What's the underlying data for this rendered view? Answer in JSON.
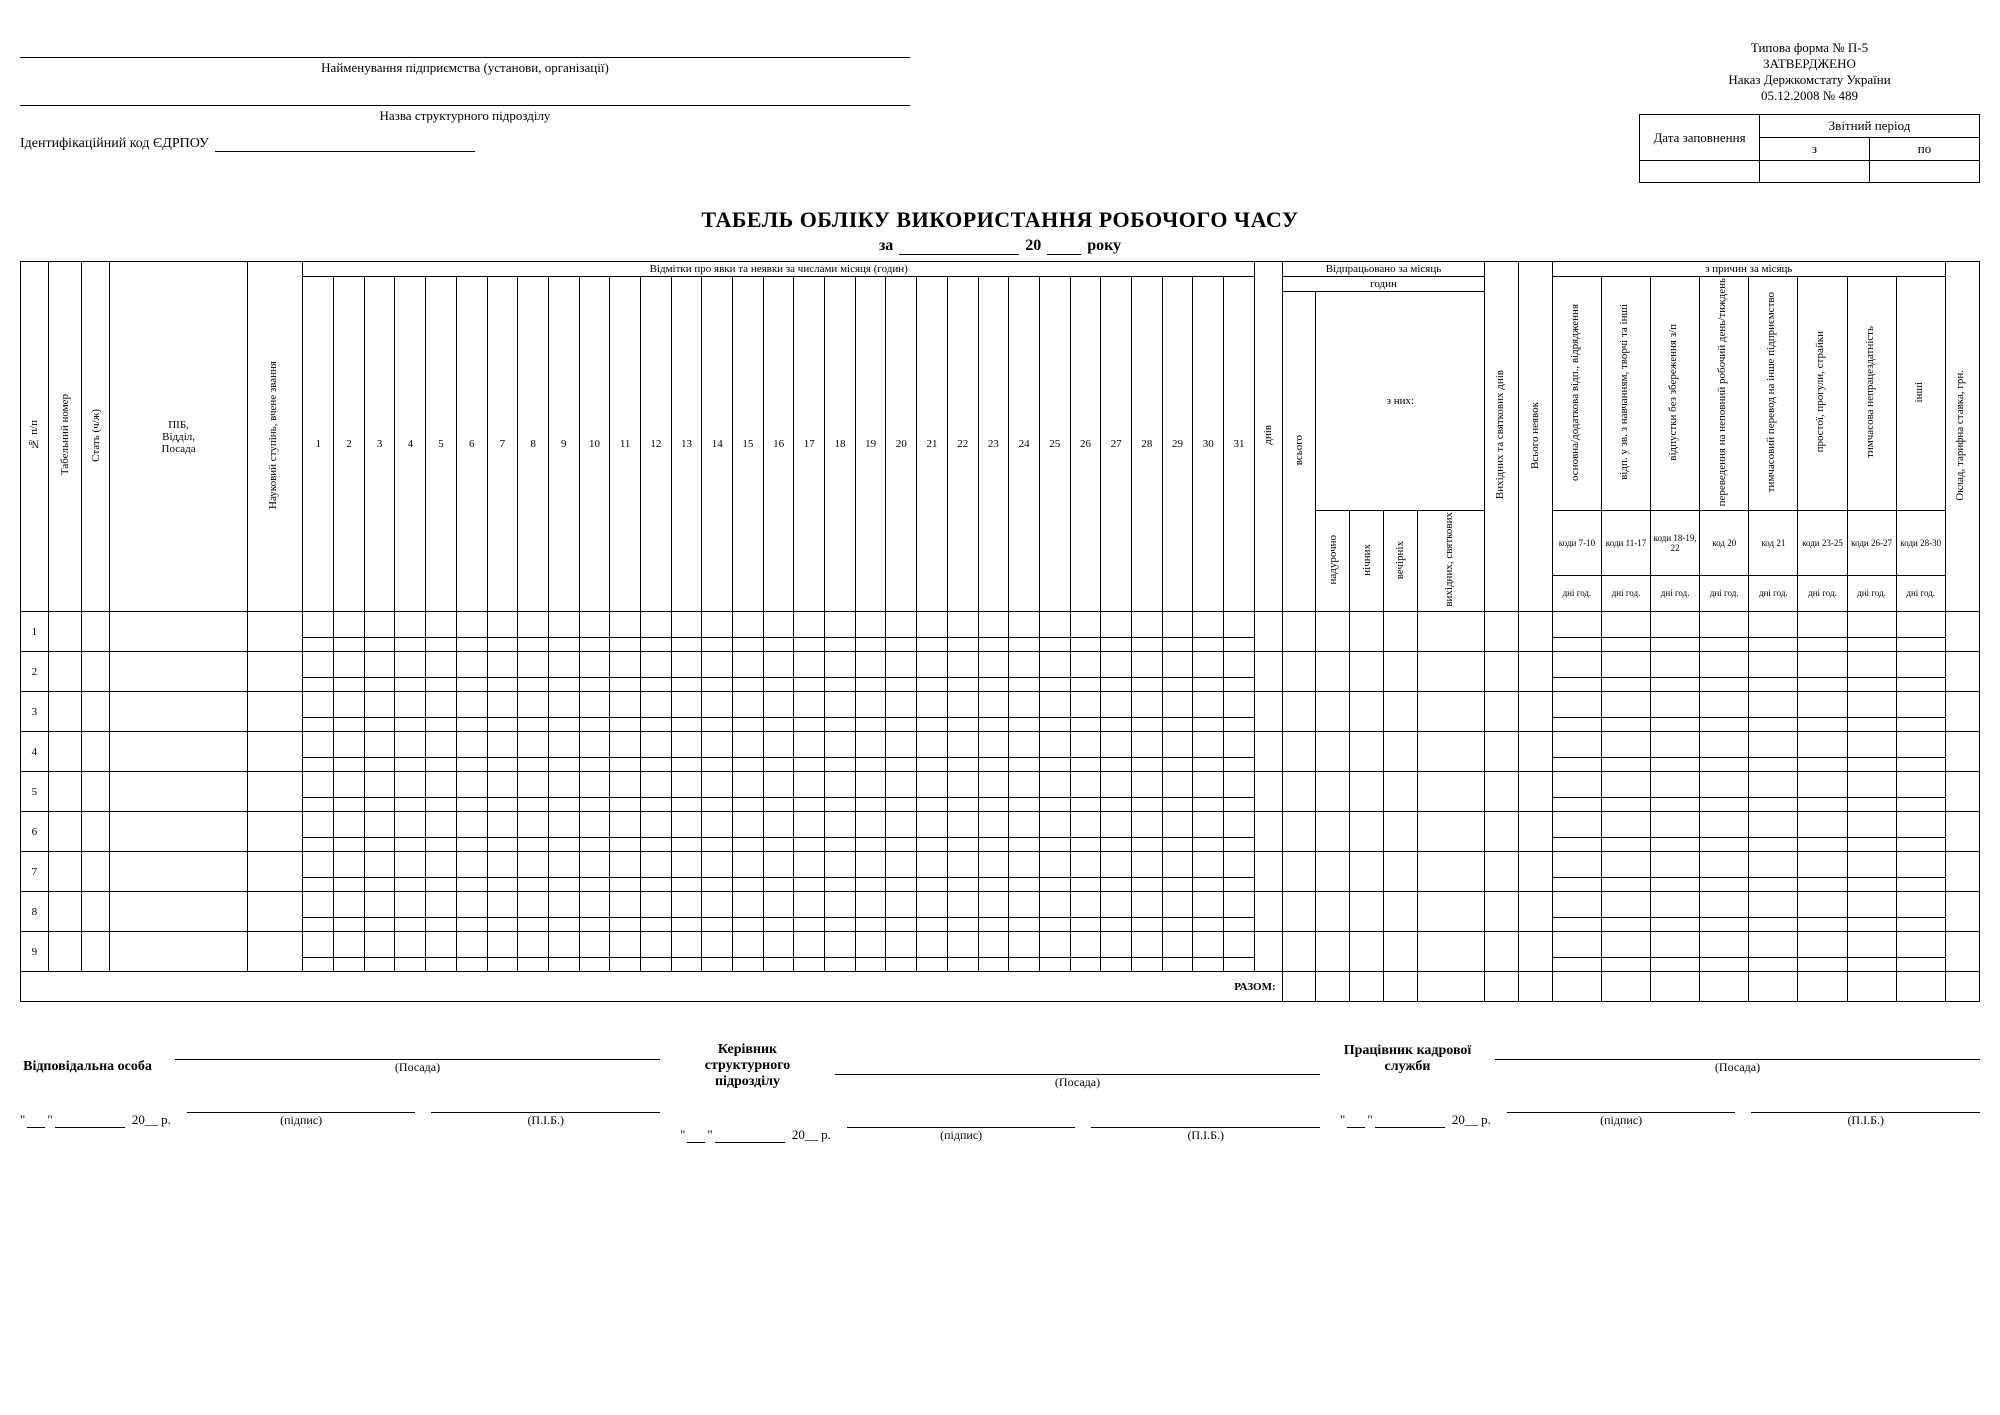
{
  "header": {
    "org_caption": "Найменування підприємства (установи, організації)",
    "unit_caption": "Назва структурного підрозділу",
    "id_label": "Ідентифікаційний код ЄДРПОУ",
    "form_line1": "Типова форма № П-5",
    "form_line2": "ЗАТВЕРДЖЕНО",
    "form_line3": "Наказ Держкомстату України",
    "form_line4": "05.12.2008 № 489",
    "period_table": {
      "date_filled": "Дата заповнення",
      "period": "Звітний період",
      "from": "з",
      "to": "по"
    }
  },
  "title": "ТАБЕЛЬ ОБЛІКУ ВИКОРИСТАННЯ РОБОЧОГО ЧАСУ",
  "subtitle": {
    "za": "за",
    "twenty": "20",
    "year": "року"
  },
  "columns": {
    "no": "№ п/п",
    "tab_no": "Табельний номер",
    "sex": "Стать (ч/ж)",
    "name": "ПІБ,\nВідділ,\nПосада",
    "degree": "Науковий ступінь,\nвчене звання",
    "marks_title": "Відмітки про явки та неявки за числами місяця (годин)",
    "days": [
      "1",
      "2",
      "3",
      "4",
      "5",
      "6",
      "7",
      "8",
      "9",
      "10",
      "11",
      "12",
      "13",
      "14",
      "15",
      "16",
      "17",
      "18",
      "19",
      "20",
      "21",
      "22",
      "23",
      "24",
      "25",
      "26",
      "27",
      "28",
      "29",
      "30",
      "31"
    ],
    "days_col": "днів",
    "worked_month": "Відпрацьовано за місяць",
    "hours": "годин",
    "of_them": "з них:",
    "vsogo": "всього",
    "overtime": "надурочно",
    "night": "нічних",
    "evening": "вечірніх",
    "weekend": "вихідних, святкових",
    "weekend_days": "Вихідних та святкових днів",
    "total_absent": "Всього неявок",
    "causes_title": "з причин за місяць",
    "cause_labels": [
      "основна/додаткова\nвідп., відрядження",
      "відп. у зв. з навчанням,\nтворчі та інші",
      "відпустки без\nзбереження з/п",
      "переведення на\nнеповний\nробочий день/тиждень",
      "тимчасовий перевод на\nінше підприємство",
      "простої, прогули,\nстрайки",
      "тимчасова\nнепрацездатність",
      "інші"
    ],
    "cause_codes": [
      "коди 7-10",
      "коди 11-17",
      "коди 18-19, 22",
      "код 20",
      "код 21",
      "коди 23-25",
      "коди 26-27",
      "коди 28-30"
    ],
    "cause_units": "дні год.",
    "salary": "Оклад, тарифна ставка, грн."
  },
  "rows": [
    1,
    2,
    3,
    4,
    5,
    6,
    7,
    8,
    9
  ],
  "total": "РАЗОМ:",
  "signatures": {
    "posada": "(Посада)",
    "pidpys": "(підпис)",
    "pib": "(П.І.Б.)",
    "date_y": "20__ р.",
    "resp": "Відповідальна особа",
    "head": "Керівник структурного підрозділу",
    "hr": "Працівник кадрової служби"
  },
  "style": {
    "border": "#000000",
    "bg": "#ffffff",
    "bold": 700
  }
}
